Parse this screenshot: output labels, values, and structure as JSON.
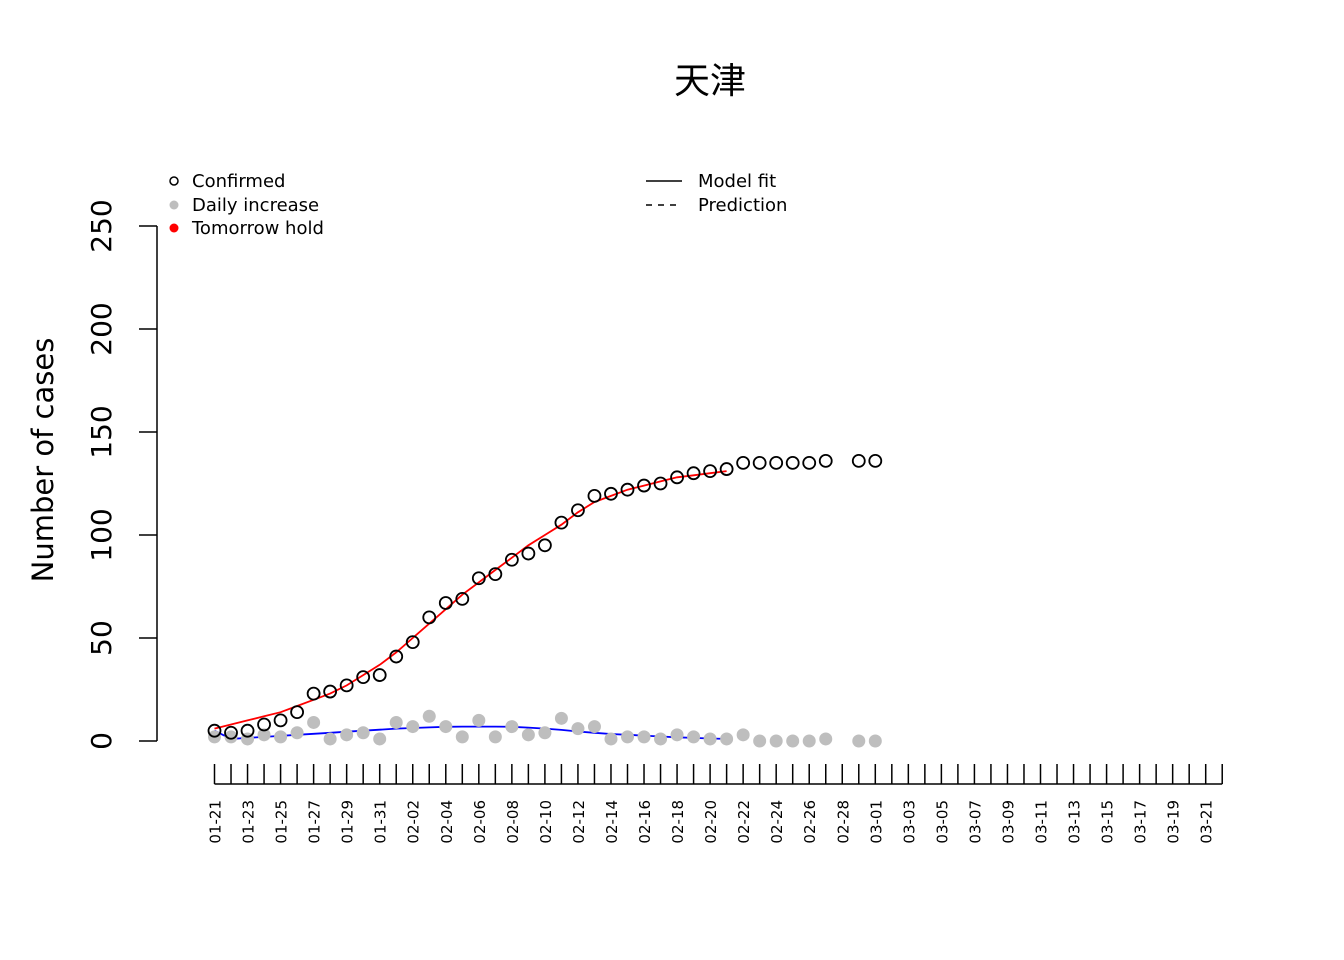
{
  "chart_data": {
    "type": "scatter",
    "title": "天津",
    "xlabel": "",
    "ylabel": "Number of cases",
    "ylim": [
      0,
      250
    ],
    "yticks": [
      0,
      50,
      100,
      150,
      200,
      250
    ],
    "x_dates": [
      "01-21",
      "01-22",
      "01-23",
      "01-24",
      "01-25",
      "01-26",
      "01-27",
      "01-28",
      "01-29",
      "01-30",
      "01-31",
      "02-01",
      "02-02",
      "02-03",
      "02-04",
      "02-05",
      "02-06",
      "02-07",
      "02-08",
      "02-09",
      "02-10",
      "02-11",
      "02-12",
      "02-13",
      "02-14",
      "02-15",
      "02-16",
      "02-17",
      "02-18",
      "02-19",
      "02-20",
      "02-21",
      "02-22",
      "02-23",
      "02-24",
      "02-25",
      "02-26",
      "02-27",
      "02-28",
      "02-29",
      "03-01",
      "03-02",
      "03-03",
      "03-04",
      "03-05",
      "03-06",
      "03-07",
      "03-08",
      "03-09",
      "03-10",
      "03-11",
      "03-12",
      "03-13",
      "03-14",
      "03-15",
      "03-16",
      "03-17",
      "03-18",
      "03-19",
      "03-20",
      "03-21",
      "03-22"
    ],
    "x_tick_labels": [
      "01-21",
      "01-23",
      "01-25",
      "01-27",
      "01-29",
      "01-31",
      "02-02",
      "02-04",
      "02-06",
      "02-08",
      "02-10",
      "02-12",
      "02-14",
      "02-16",
      "02-18",
      "02-20",
      "02-22",
      "02-24",
      "02-26",
      "02-28",
      "03-01",
      "03-03",
      "03-05",
      "03-07",
      "03-09",
      "03-11",
      "03-13",
      "03-15",
      "03-17",
      "03-19",
      "03-21"
    ],
    "legend": {
      "left": [
        {
          "label": "Confirmed",
          "symbol": "open-circle",
          "color": "#000000"
        },
        {
          "label": "Daily increase",
          "symbol": "filled-circle",
          "color": "#bebebe"
        },
        {
          "label": "Tomorrow hold",
          "symbol": "filled-circle",
          "color": "#ff0000"
        }
      ],
      "right": [
        {
          "label": "Model fit",
          "symbol": "solid-line",
          "color": "#000000"
        },
        {
          "label": "Prediction",
          "symbol": "dashed-line",
          "color": "#000000"
        }
      ],
      "position": "top"
    },
    "series": [
      {
        "name": "Confirmed",
        "style": "open-circle",
        "color": "#000000",
        "points": [
          [
            "01-21",
            5
          ],
          [
            "01-22",
            4
          ],
          [
            "01-23",
            5
          ],
          [
            "01-24",
            8
          ],
          [
            "01-25",
            10
          ],
          [
            "01-26",
            14
          ],
          [
            "01-27",
            23
          ],
          [
            "01-28",
            24
          ],
          [
            "01-29",
            27
          ],
          [
            "01-30",
            31
          ],
          [
            "01-31",
            32
          ],
          [
            "02-01",
            41
          ],
          [
            "02-02",
            48
          ],
          [
            "02-03",
            60
          ],
          [
            "02-04",
            67
          ],
          [
            "02-05",
            69
          ],
          [
            "02-06",
            79
          ],
          [
            "02-07",
            81
          ],
          [
            "02-08",
            88
          ],
          [
            "02-09",
            91
          ],
          [
            "02-10",
            95
          ],
          [
            "02-11",
            106
          ],
          [
            "02-12",
            112
          ],
          [
            "02-13",
            119
          ],
          [
            "02-14",
            120
          ],
          [
            "02-15",
            122
          ],
          [
            "02-16",
            124
          ],
          [
            "02-17",
            125
          ],
          [
            "02-18",
            128
          ],
          [
            "02-19",
            130
          ],
          [
            "02-20",
            131
          ],
          [
            "02-21",
            132
          ],
          [
            "02-22",
            135
          ],
          [
            "02-23",
            135
          ],
          [
            "02-24",
            135
          ],
          [
            "02-25",
            135
          ],
          [
            "02-26",
            135
          ],
          [
            "02-27",
            136
          ],
          [
            "02-29",
            136
          ],
          [
            "03-01",
            136
          ]
        ]
      },
      {
        "name": "Daily increase",
        "style": "filled-circle",
        "color": "#bebebe",
        "points": [
          [
            "01-21",
            2
          ],
          [
            "01-22",
            2
          ],
          [
            "01-23",
            1
          ],
          [
            "01-24",
            3
          ],
          [
            "01-25",
            2
          ],
          [
            "01-26",
            4
          ],
          [
            "01-27",
            9
          ],
          [
            "01-28",
            1
          ],
          [
            "01-29",
            3
          ],
          [
            "01-30",
            4
          ],
          [
            "01-31",
            1
          ],
          [
            "02-01",
            9
          ],
          [
            "02-02",
            7
          ],
          [
            "02-03",
            12
          ],
          [
            "02-04",
            7
          ],
          [
            "02-05",
            2
          ],
          [
            "02-06",
            10
          ],
          [
            "02-07",
            2
          ],
          [
            "02-08",
            7
          ],
          [
            "02-09",
            3
          ],
          [
            "02-10",
            4
          ],
          [
            "02-11",
            11
          ],
          [
            "02-12",
            6
          ],
          [
            "02-13",
            7
          ],
          [
            "02-14",
            1
          ],
          [
            "02-15",
            2
          ],
          [
            "02-16",
            2
          ],
          [
            "02-17",
            1
          ],
          [
            "02-18",
            3
          ],
          [
            "02-19",
            2
          ],
          [
            "02-20",
            1
          ],
          [
            "02-21",
            1
          ],
          [
            "02-22",
            3
          ],
          [
            "02-23",
            0
          ],
          [
            "02-24",
            0
          ],
          [
            "02-25",
            0
          ],
          [
            "02-26",
            0
          ],
          [
            "02-27",
            1
          ],
          [
            "02-29",
            0
          ],
          [
            "03-01",
            0
          ]
        ]
      },
      {
        "name": "Model fit (cumulative)",
        "style": "solid-line",
        "color": "#ff0000",
        "points": [
          [
            "01-21",
            6
          ],
          [
            "01-22",
            8
          ],
          [
            "01-23",
            10
          ],
          [
            "01-24",
            12
          ],
          [
            "01-25",
            14
          ],
          [
            "01-26",
            17
          ],
          [
            "01-27",
            20
          ],
          [
            "01-28",
            23
          ],
          [
            "01-29",
            27
          ],
          [
            "01-30",
            32
          ],
          [
            "01-31",
            37
          ],
          [
            "02-01",
            43
          ],
          [
            "02-02",
            50
          ],
          [
            "02-03",
            57
          ],
          [
            "02-04",
            64
          ],
          [
            "02-05",
            71
          ],
          [
            "02-06",
            77
          ],
          [
            "02-07",
            83
          ],
          [
            "02-08",
            89
          ],
          [
            "02-09",
            95
          ],
          [
            "02-10",
            100
          ],
          [
            "02-11",
            105
          ],
          [
            "02-12",
            111
          ],
          [
            "02-13",
            116
          ],
          [
            "02-14",
            119
          ],
          [
            "02-15",
            122
          ],
          [
            "02-16",
            124
          ],
          [
            "02-17",
            126
          ],
          [
            "02-18",
            128
          ],
          [
            "02-19",
            129
          ],
          [
            "02-20",
            130
          ],
          [
            "02-21",
            131
          ]
        ]
      },
      {
        "name": "Model fit (daily)",
        "style": "solid-line",
        "color": "#0000ff",
        "points": [
          [
            "01-21",
            5
          ],
          [
            "01-22",
            1
          ],
          [
            "01-23",
            1.5
          ],
          [
            "01-24",
            2
          ],
          [
            "01-25",
            2.5
          ],
          [
            "01-26",
            3
          ],
          [
            "01-27",
            3.5
          ],
          [
            "01-28",
            4
          ],
          [
            "01-29",
            4.5
          ],
          [
            "01-30",
            5
          ],
          [
            "01-31",
            5.5
          ],
          [
            "02-01",
            6
          ],
          [
            "02-02",
            6.3
          ],
          [
            "02-03",
            6.6
          ],
          [
            "02-04",
            6.9
          ],
          [
            "02-05",
            7
          ],
          [
            "02-06",
            7
          ],
          [
            "02-07",
            7
          ],
          [
            "02-08",
            6.9
          ],
          [
            "02-09",
            6.5
          ],
          [
            "02-10",
            6
          ],
          [
            "02-11",
            5.4
          ],
          [
            "02-12",
            4.6
          ],
          [
            "02-13",
            4
          ],
          [
            "02-14",
            3.4
          ],
          [
            "02-15",
            3
          ],
          [
            "02-16",
            2.6
          ],
          [
            "02-17",
            2.2
          ],
          [
            "02-18",
            1.8
          ],
          [
            "02-19",
            1.5
          ],
          [
            "02-20",
            1.2
          ],
          [
            "02-21",
            1
          ]
        ]
      }
    ]
  }
}
